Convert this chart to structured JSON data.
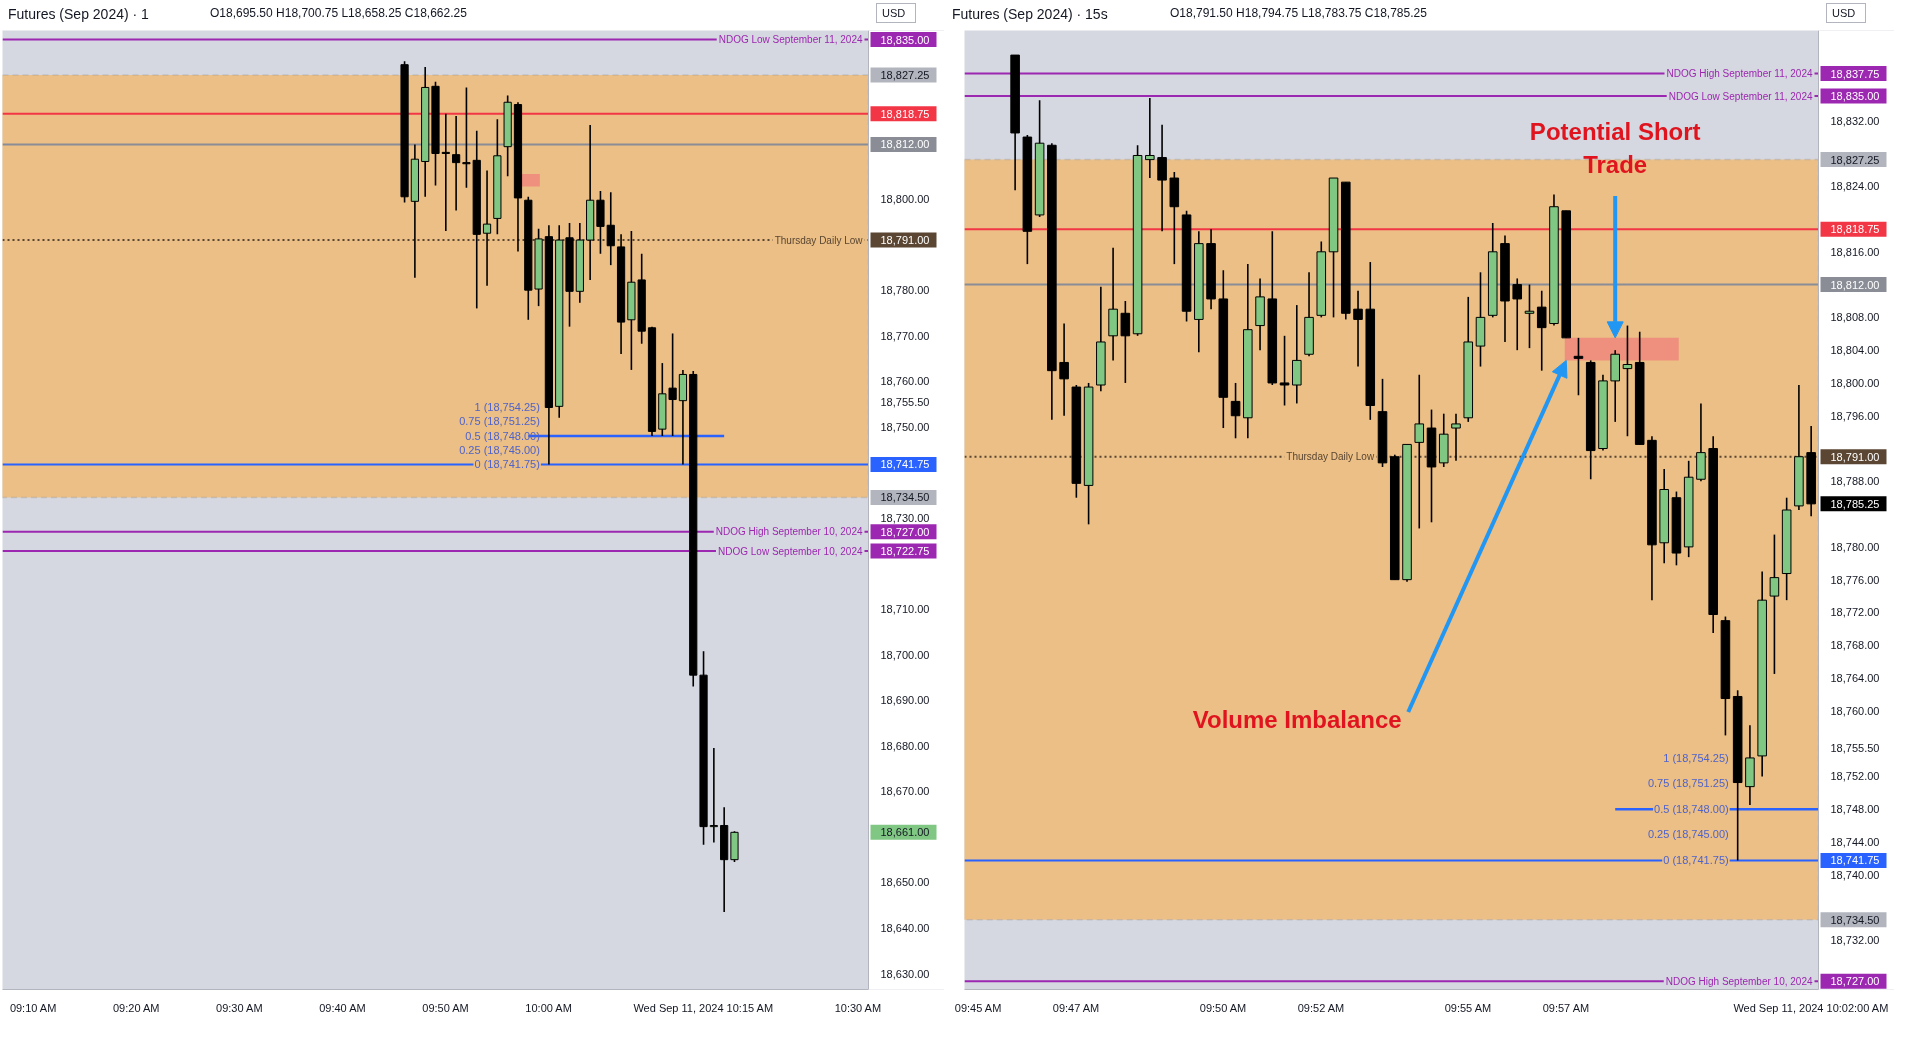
{
  "chart_data": [
    {
      "type": "candlestick",
      "title": "Futures (Sep 2024) · 1",
      "subtitle": "O18,695.50 H18,700.75 L18,658.25 C18,662.25",
      "ylabel": "USD",
      "xlim": [
        "2024-09-11T09:07:00",
        "2024-09-11T10:31:00"
      ],
      "xticks": [
        {
          "value": "2024-09-11T09:10",
          "label": "09:10 AM"
        },
        {
          "value": "2024-09-11T09:20",
          "label": "09:20 AM"
        },
        {
          "value": "2024-09-11T09:30",
          "label": "09:30 AM"
        },
        {
          "value": "2024-09-11T09:40",
          "label": "09:40 AM"
        },
        {
          "value": "2024-09-11T09:50",
          "label": "09:50 AM"
        },
        {
          "value": "2024-09-11T10:00",
          "label": "10:00 AM"
        },
        {
          "value": "2024-09-11T10:15",
          "label": "Wed Sep 11, 2024 10:15 AM"
        },
        {
          "value": "2024-09-11T10:30",
          "label": "10:30 AM"
        }
      ],
      "ylim": [
        18626.5,
        18837
      ],
      "yticks": [
        {
          "value": 18630,
          "label": "18,630.00"
        },
        {
          "value": 18640,
          "label": "18,640.00"
        },
        {
          "value": 18650,
          "label": "18,650.00"
        },
        {
          "value": 18661,
          "label": "18,661.00"
        },
        {
          "value": 18670,
          "label": "18,670.00"
        },
        {
          "value": 18680,
          "label": "18,680.00"
        },
        {
          "value": 18690,
          "label": "18,690.00"
        },
        {
          "value": 18700,
          "label": "18,700.00"
        },
        {
          "value": 18710,
          "label": "18,710.00"
        },
        {
          "value": 18722.75,
          "label": "18,722.75"
        },
        {
          "value": 18727,
          "label": "18,727.00"
        },
        {
          "value": 18730,
          "label": "18,730.00"
        },
        {
          "value": 18734.5,
          "label": "18,734.50"
        },
        {
          "value": 18741.75,
          "label": "18,741.75"
        },
        {
          "value": 18750,
          "label": "18,750.00"
        },
        {
          "value": 18755.5,
          "label": "18,755.50"
        },
        {
          "value": 18760,
          "label": "18,760.00"
        },
        {
          "value": 18770,
          "label": "18,770.00"
        },
        {
          "value": 18780,
          "label": "18,780.00"
        },
        {
          "value": 18791,
          "label": "18,791.00"
        },
        {
          "value": 18800,
          "label": "18,800.00"
        },
        {
          "value": 18812,
          "label": "18,812.00"
        },
        {
          "value": 18818.75,
          "label": "18,818.75"
        },
        {
          "value": 18827.25,
          "label": "18,827.25"
        },
        {
          "value": 18835,
          "label": "18,835.00"
        }
      ],
      "x": [
        "2024-09-11T09:46",
        "2024-09-11T09:47",
        "2024-09-11T09:48",
        "2024-09-11T09:49",
        "2024-09-11T09:50",
        "2024-09-11T09:51",
        "2024-09-11T09:52",
        "2024-09-11T09:53",
        "2024-09-11T09:54",
        "2024-09-11T09:55",
        "2024-09-11T09:56",
        "2024-09-11T09:57",
        "2024-09-11T09:58",
        "2024-09-11T09:59",
        "2024-09-11T10:00",
        "2024-09-11T10:01",
        "2024-09-11T10:02",
        "2024-09-11T10:03",
        "2024-09-11T10:04",
        "2024-09-11T10:05",
        "2024-09-11T10:06",
        "2024-09-11T10:07",
        "2024-09-11T10:08",
        "2024-09-11T10:09",
        "2024-09-11T10:10",
        "2024-09-11T10:11",
        "2024-09-11T10:12",
        "2024-09-11T10:13",
        "2024-09-11T10:14",
        "2024-09-11T10:15",
        "2024-09-11T10:16",
        "2024-09-11T10:17",
        "2024-09-11T10:18"
      ],
      "ohlc": [
        [
          18829.5,
          18830.25,
          18799.25,
          18800.5
        ],
        [
          18799.5,
          18812,
          18782.75,
          18808.75
        ],
        [
          18808.25,
          18829,
          18800.5,
          18824.5
        ],
        [
          18824.75,
          18825.75,
          18803,
          18810
        ],
        [
          18810.25,
          18818.75,
          18793,
          18810
        ],
        [
          18809.75,
          18818.25,
          18797.5,
          18808
        ],
        [
          18808,
          18824.5,
          18802.5,
          18807.75
        ],
        [
          18808.5,
          18815,
          18776,
          18792.25
        ],
        [
          18792.5,
          18806.25,
          18781,
          18794.5
        ],
        [
          18795.75,
          18817.5,
          18792.25,
          18809.5
        ],
        [
          18811.5,
          18822.75,
          18805,
          18821.25
        ],
        [
          18820.75,
          18821.25,
          18788.5,
          18800.25
        ],
        [
          18799.75,
          18800.5,
          18773.5,
          18780
        ],
        [
          18780.25,
          18793.5,
          18776.5,
          18791.25
        ],
        [
          18791.75,
          18794.25,
          18741.75,
          18754.25
        ],
        [
          18754.5,
          18794.25,
          18752,
          18791
        ],
        [
          18791.5,
          18794.75,
          18772,
          18779.75
        ],
        [
          18779.75,
          18794.75,
          18777.25,
          18791
        ],
        [
          18791,
          18816.25,
          18782.25,
          18799.75
        ],
        [
          18799.75,
          18801.75,
          18788,
          18794
        ],
        [
          18794.25,
          18801.5,
          18785.5,
          18789.75
        ],
        [
          18789.5,
          18792.25,
          18766,
          18773
        ],
        [
          18773.5,
          18793,
          18762.5,
          18781.75
        ],
        [
          18782.25,
          18788,
          18768.25,
          18771
        ],
        [
          18771.75,
          18772,
          18748,
          18749
        ],
        [
          18749.5,
          18764,
          18748,
          18757.25
        ],
        [
          18758.5,
          18770.5,
          18748,
          18756
        ],
        [
          18755.75,
          18762.5,
          18741.75,
          18761.5
        ],
        [
          18761.5,
          18762.25,
          18693,
          18695.5
        ],
        [
          18695.5,
          18700.75,
          18658.25,
          18662.25
        ],
        [
          18662.25,
          18679.5,
          18658.75,
          18662.5
        ],
        [
          18662.5,
          18666.5,
          18643.5,
          18655
        ],
        [
          18655,
          18661.25,
          18654.5,
          18661
        ]
      ],
      "colors": [
        "#000000",
        "#80c783",
        "#80c783",
        "#000000",
        "#000000",
        "#000000",
        "#000000",
        "#000000",
        "#80c783",
        "#80c783",
        "#80c783",
        "#000000",
        "#000000",
        "#80c783",
        "#000000",
        "#80c783",
        "#000000",
        "#80c783",
        "#80c783",
        "#000000",
        "#000000",
        "#000000",
        "#80c783",
        "#000000",
        "#000000",
        "#80c783",
        "#000000",
        "#80c783",
        "#000000",
        "#000000",
        "#80c783",
        "#000000",
        "#80c783"
      ],
      "series": [
        {
          "type": "bar",
          "x": [
            "2024-09-11T09:58:15"
          ],
          "base": [
            18802.75
          ],
          "values": [
            2.75
          ],
          "color": "#ef8a7c"
        },
        {
          "type": "line",
          "x": [
            "2024-09-11T09:58",
            "2024-09-11T10:17"
          ],
          "values": [
            18748,
            18748
          ],
          "color": "#2962ff"
        }
      ],
      "bands": [
        {
          "axis": "y",
          "from": 18734.5,
          "to": 18827.25,
          "color": "#ebbf86"
        }
      ],
      "ref_lines": [
        {
          "axis": "y",
          "value": 18835,
          "label": "NDOG Low September 11, 2024",
          "color": "#9c27b0"
        },
        {
          "axis": "y",
          "value": 18818.75,
          "color": "#f23645"
        },
        {
          "axis": "y",
          "value": 18812,
          "color": "#8a8d96"
        },
        {
          "axis": "y",
          "value": 18791,
          "label": "Thursday Daily Low",
          "color": "#5a4632",
          "line_style": "dotted"
        },
        {
          "axis": "y",
          "value": 18741.75,
          "color": "#2962ff"
        },
        {
          "axis": "y",
          "value": 18727,
          "label": "NDOG High September 10, 2024",
          "color": "#9c27b0"
        },
        {
          "axis": "y",
          "value": 18722.75,
          "label": "NDOG Low September 10, 2024",
          "color": "#9c27b0"
        }
      ],
      "annotations": [
        {
          "text": "1 (18,754.25)",
          "x": "2024-09-11T10:00",
          "y": 18754.25
        },
        {
          "text": "0.75 (18,751.25)",
          "x": "2024-09-11T10:00",
          "y": 18751.25
        },
        {
          "text": "0.5 (18,748.00)",
          "x": "2024-09-11T10:00",
          "y": 18748
        },
        {
          "text": "0.25 (18,745.00)",
          "x": "2024-09-11T10:00",
          "y": 18745
        },
        {
          "text": "0 (18,741.75)",
          "x": "2024-09-11T10:00",
          "y": 18741.75
        }
      ]
    },
    {
      "type": "candlestick",
      "title": "Futures (Sep 2024) · 15s",
      "subtitle": "O18,791.50 H18,794.75 L18,783.75 C18,785.25",
      "ylabel": "USD",
      "xlim": [
        "2024-09-11T09:44:43",
        "2024-09-11T10:02:09"
      ],
      "xticks": [
        {
          "value": "2024-09-11T09:45:00",
          "label": "09:45 AM"
        },
        {
          "value": "2024-09-11T09:47:00",
          "label": "09:47 AM"
        },
        {
          "value": "2024-09-11T09:50:00",
          "label": "09:50 AM"
        },
        {
          "value": "2024-09-11T09:52:00",
          "label": "09:52 AM"
        },
        {
          "value": "2024-09-11T09:55:00",
          "label": "09:55 AM"
        },
        {
          "value": "2024-09-11T09:57:00",
          "label": "09:57 AM"
        },
        {
          "value": "2024-09-11T10:02:00",
          "label": "Wed Sep 11, 2024 10:02:00 AM"
        }
      ],
      "ylim": [
        18726,
        18843
      ],
      "yticks": [
        {
          "value": 18727,
          "label": "18,727.00"
        },
        {
          "value": 18732,
          "label": "18,732.00"
        },
        {
          "value": 18734.5,
          "label": "18,734.50"
        },
        {
          "value": 18740,
          "label": "18,740.00"
        },
        {
          "value": 18741.75,
          "label": "18,741.75"
        },
        {
          "value": 18744,
          "label": "18,744.00"
        },
        {
          "value": 18748,
          "label": "18,748.00"
        },
        {
          "value": 18752,
          "label": "18,752.00"
        },
        {
          "value": 18755.5,
          "label": "18,755.50"
        },
        {
          "value": 18760,
          "label": "18,760.00"
        },
        {
          "value": 18764,
          "label": "18,764.00"
        },
        {
          "value": 18768,
          "label": "18,768.00"
        },
        {
          "value": 18772,
          "label": "18,772.00"
        },
        {
          "value": 18776,
          "label": "18,776.00"
        },
        {
          "value": 18780,
          "label": "18,780.00"
        },
        {
          "value": 18785.25,
          "label": "18,785.25"
        },
        {
          "value": 18788,
          "label": "18,788.00"
        },
        {
          "value": 18791,
          "label": "18,791.00"
        },
        {
          "value": 18796,
          "label": "18,796.00"
        },
        {
          "value": 18800,
          "label": "18,800.00"
        },
        {
          "value": 18804,
          "label": "18,804.00"
        },
        {
          "value": 18808,
          "label": "18,808.00"
        },
        {
          "value": 18812,
          "label": "18,812.00"
        },
        {
          "value": 18816,
          "label": "18,816.00"
        },
        {
          "value": 18818.75,
          "label": "18,818.75"
        },
        {
          "value": 18824,
          "label": "18,824.00"
        },
        {
          "value": 18827.25,
          "label": "18,827.25"
        },
        {
          "value": 18832,
          "label": "18,832.00"
        },
        {
          "value": 18835,
          "label": "18,835.00"
        },
        {
          "value": 18837.75,
          "label": "18,837.75"
        }
      ],
      "x": [
        "2024-09-11T09:45:45",
        "2024-09-11T09:46:00",
        "2024-09-11T09:46:15",
        "2024-09-11T09:46:30",
        "2024-09-11T09:46:45",
        "2024-09-11T09:47:00",
        "2024-09-11T09:47:15",
        "2024-09-11T09:47:30",
        "2024-09-11T09:47:45",
        "2024-09-11T09:48:00",
        "2024-09-11T09:48:15",
        "2024-09-11T09:48:30",
        "2024-09-11T09:48:45",
        "2024-09-11T09:49:00",
        "2024-09-11T09:49:15",
        "2024-09-11T09:49:30",
        "2024-09-11T09:49:45",
        "2024-09-11T09:50:00",
        "2024-09-11T09:50:15",
        "2024-09-11T09:50:30",
        "2024-09-11T09:50:45",
        "2024-09-11T09:51:00",
        "2024-09-11T09:51:15",
        "2024-09-11T09:51:30",
        "2024-09-11T09:51:45",
        "2024-09-11T09:52:00",
        "2024-09-11T09:52:15",
        "2024-09-11T09:52:30",
        "2024-09-11T09:52:45",
        "2024-09-11T09:53:00",
        "2024-09-11T09:53:15",
        "2024-09-11T09:53:30",
        "2024-09-11T09:53:45",
        "2024-09-11T09:54:00",
        "2024-09-11T09:54:15",
        "2024-09-11T09:54:30",
        "2024-09-11T09:54:45",
        "2024-09-11T09:55:00",
        "2024-09-11T09:55:15",
        "2024-09-11T09:55:30",
        "2024-09-11T09:55:45",
        "2024-09-11T09:56:00",
        "2024-09-11T09:56:15",
        "2024-09-11T09:56:30",
        "2024-09-11T09:56:45",
        "2024-09-11T09:57:00",
        "2024-09-11T09:57:15",
        "2024-09-11T09:57:30",
        "2024-09-11T09:57:45",
        "2024-09-11T09:58:00",
        "2024-09-11T09:58:15",
        "2024-09-11T09:58:30",
        "2024-09-11T09:58:45",
        "2024-09-11T09:59:00",
        "2024-09-11T09:59:15",
        "2024-09-11T09:59:30",
        "2024-09-11T09:59:45",
        "2024-09-11T10:00:00",
        "2024-09-11T10:00:15",
        "2024-09-11T10:00:30",
        "2024-09-11T10:00:45",
        "2024-09-11T10:01:00",
        "2024-09-11T10:01:15",
        "2024-09-11T10:01:30",
        "2024-09-11T10:01:45",
        "2024-09-11T10:02:00"
      ],
      "ohlc": [
        [
          18840,
          18840,
          18823.5,
          18830.5
        ],
        [
          18830,
          18830.25,
          18814.5,
          18818.5
        ],
        [
          18820.5,
          18834.5,
          18820.25,
          18829.25
        ],
        [
          18829,
          18829.25,
          18795.5,
          18801.5
        ],
        [
          18802.5,
          18807.25,
          18796,
          18800.5
        ],
        [
          18799.5,
          18799.75,
          18786,
          18787.75
        ],
        [
          18787.5,
          18800,
          18782.75,
          18799.5
        ],
        [
          18799.75,
          18811.75,
          18799,
          18805
        ],
        [
          18805.75,
          18816.5,
          18802.75,
          18809
        ],
        [
          18808.5,
          18810,
          18800,
          18805.75
        ],
        [
          18806,
          18829,
          18805.75,
          18827.75
        ],
        [
          18827.25,
          18834.75,
          18825,
          18827.75
        ],
        [
          18827.5,
          18831.5,
          18818.5,
          18824.75
        ],
        [
          18825,
          18825.75,
          18814.5,
          18821.5
        ],
        [
          18820.5,
          18821,
          18807.5,
          18808.75
        ],
        [
          18807.75,
          18818.5,
          18803.75,
          18817
        ],
        [
          18817,
          18818.75,
          18809,
          18810.25
        ],
        [
          18810.25,
          18813.75,
          18794.5,
          18798.25
        ],
        [
          18797.75,
          18800,
          18793.25,
          18796
        ],
        [
          18795.75,
          18814.5,
          18793.25,
          18806.5
        ],
        [
          18807,
          18812.75,
          18804,
          18810.5
        ],
        [
          18810.25,
          18818.5,
          18799.75,
          18800
        ],
        [
          18800,
          18805.75,
          18797.25,
          18799.75
        ],
        [
          18799.75,
          18809.5,
          18797.5,
          18802.75
        ],
        [
          18803.5,
          18813.5,
          18803.25,
          18808
        ],
        [
          18808.25,
          18817.25,
          18808,
          18816
        ],
        [
          18816,
          18825,
          18808,
          18825
        ],
        [
          18824.5,
          18824.5,
          18807.75,
          18808.5
        ],
        [
          18809,
          18811.25,
          18802,
          18807.75
        ],
        [
          18809,
          18814.75,
          18795.5,
          18797.25
        ],
        [
          18796.5,
          18800.5,
          18789.75,
          18790.25
        ],
        [
          18791,
          18791.25,
          18776,
          18776
        ],
        [
          18776,
          18792.5,
          18775.75,
          18792.5
        ],
        [
          18792.75,
          18801,
          18782.25,
          18795
        ],
        [
          18794.5,
          18796.75,
          18783,
          18789.75
        ],
        [
          18790.25,
          18796.25,
          18789.75,
          18793.75
        ],
        [
          18794.5,
          18796.25,
          18790.5,
          18795
        ],
        [
          18795.75,
          18810.5,
          18795.25,
          18805
        ],
        [
          18804.5,
          18813.5,
          18802,
          18808
        ],
        [
          18808.25,
          18819.5,
          18808,
          18816
        ],
        [
          18817,
          18818,
          18805,
          18810
        ],
        [
          18812,
          18812.75,
          18804,
          18810.25
        ],
        [
          18808.5,
          18812,
          18804.25,
          18808.75
        ],
        [
          18809.25,
          18811.25,
          18801.5,
          18806.75
        ],
        [
          18807.25,
          18823,
          18807,
          18821.5
        ],
        [
          18821,
          18821,
          18805.5,
          18805.5
        ],
        [
          18803.25,
          18805.5,
          18798.5,
          18803
        ],
        [
          18802.5,
          18802.75,
          18788.25,
          18791.75
        ],
        [
          18792,
          18801,
          18791.75,
          18800.25
        ],
        [
          18800.25,
          18804,
          18795.25,
          18803.5
        ],
        [
          18801.75,
          18807,
          18793.5,
          18802.25
        ],
        [
          18802.5,
          18806.25,
          18792.5,
          18792.5
        ],
        [
          18793,
          18793.5,
          18773.5,
          18780.25
        ],
        [
          18780.5,
          18789.5,
          18778,
          18787
        ],
        [
          18786,
          18786.75,
          18777.75,
          18779.25
        ],
        [
          18780,
          18790.5,
          18778.75,
          18788.5
        ],
        [
          18788.25,
          18797.5,
          18788,
          18791.5
        ],
        [
          18792,
          18793.5,
          18769.5,
          18771.75
        ],
        [
          18771,
          18771.5,
          18757,
          18761.5
        ],
        [
          18761.75,
          18762.5,
          18741.75,
          18751.25
        ],
        [
          18750.75,
          18758.25,
          18748.5,
          18754.25
        ],
        [
          18754.5,
          18777,
          18752,
          18773.5
        ],
        [
          18774,
          18781.5,
          18764.5,
          18776.25
        ],
        [
          18776.75,
          18786,
          18773.5,
          18784.5
        ],
        [
          18785,
          18799.75,
          18784.5,
          18791
        ],
        [
          18791.5,
          18794.75,
          18783.75,
          18785.25
        ]
      ],
      "colors": [
        "#000000",
        "#000000",
        "#80c783",
        "#000000",
        "#000000",
        "#000000",
        "#80c783",
        "#80c783",
        "#80c783",
        "#000000",
        "#80c783",
        "#80c783",
        "#000000",
        "#000000",
        "#000000",
        "#80c783",
        "#000000",
        "#000000",
        "#000000",
        "#80c783",
        "#80c783",
        "#000000",
        "#000000",
        "#80c783",
        "#80c783",
        "#80c783",
        "#80c783",
        "#000000",
        "#000000",
        "#000000",
        "#000000",
        "#000000",
        "#80c783",
        "#80c783",
        "#000000",
        "#80c783",
        "#80c783",
        "#80c783",
        "#80c783",
        "#80c783",
        "#000000",
        "#000000",
        "#80c783",
        "#000000",
        "#80c783",
        "#000000",
        "#000000",
        "#000000",
        "#80c783",
        "#80c783",
        "#80c783",
        "#000000",
        "#000000",
        "#80c783",
        "#000000",
        "#80c783",
        "#80c783",
        "#000000",
        "#000000",
        "#000000",
        "#80c783",
        "#80c783",
        "#80c783",
        "#80c783",
        "#80c783",
        "#000000"
      ],
      "series": [
        {
          "type": "bar",
          "x": [
            "2024-09-11T09:58:08"
          ],
          "base": [
            18802.75
          ],
          "values": [
            2.75
          ],
          "color": "#ef8a7c"
        },
        {
          "type": "line",
          "x": [
            "2024-09-11T09:58:00",
            "2024-09-11T10:02:09"
          ],
          "values": [
            18748,
            18748
          ],
          "color": "#2962ff"
        }
      ],
      "bands": [
        {
          "axis": "y",
          "from": 18734.5,
          "to": 18827.25,
          "color": "#ebbf86"
        }
      ],
      "ref_lines": [
        {
          "axis": "y",
          "value": 18837.75,
          "label": "NDOG High September 11, 2024",
          "color": "#9c27b0"
        },
        {
          "axis": "y",
          "value": 18835,
          "label": "NDOG Low September 11, 2024",
          "color": "#9c27b0"
        },
        {
          "axis": "y",
          "value": 18818.75,
          "color": "#f23645"
        },
        {
          "axis": "y",
          "value": 18812,
          "color": "#8a8d96"
        },
        {
          "axis": "y",
          "value": 18791,
          "label": "Thursday Daily Low",
          "color": "#5a4632",
          "line_style": "dotted"
        },
        {
          "axis": "y",
          "value": 18741.75,
          "color": "#2962ff"
        },
        {
          "axis": "y",
          "value": 18727,
          "label": "NDOG High September 10, 2024",
          "color": "#9c27b0"
        }
      ],
      "annotations": [
        {
          "text": "Potential Short Trade",
          "x": "2024-09-11T09:58:00",
          "y": 18805.5
        },
        {
          "text": "Volume Imbalance",
          "x": "2024-09-11T09:57:00",
          "y": 18802.75
        },
        {
          "text": "1 (18,754.25)",
          "x": "2024-09-11T10:00:30",
          "y": 18754.25
        },
        {
          "text": "0.75 (18,751.25)",
          "x": "2024-09-11T10:00:30",
          "y": 18751.25
        },
        {
          "text": "0.5 (18,748.00)",
          "x": "2024-09-11T10:00:30",
          "y": 18748
        },
        {
          "text": "0.25 (18,745.00)",
          "x": "2024-09-11T10:00:30",
          "y": 18745
        },
        {
          "text": "0 (18,741.75)",
          "x": "2024-09-11T10:00:30",
          "y": 18741.75
        }
      ]
    }
  ]
}
